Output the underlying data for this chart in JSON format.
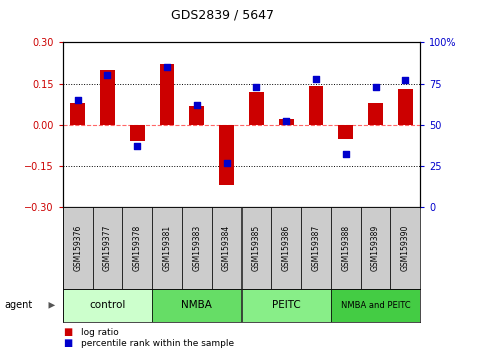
{
  "title": "GDS2839 / 5647",
  "samples": [
    "GSM159376",
    "GSM159377",
    "GSM159378",
    "GSM159381",
    "GSM159383",
    "GSM159384",
    "GSM159385",
    "GSM159386",
    "GSM159387",
    "GSM159388",
    "GSM159389",
    "GSM159390"
  ],
  "log_ratio": [
    0.08,
    0.2,
    -0.06,
    0.22,
    0.07,
    -0.22,
    0.12,
    0.02,
    0.14,
    -0.05,
    0.08,
    0.13
  ],
  "percentile_rank": [
    65,
    80,
    37,
    85,
    62,
    27,
    73,
    52,
    78,
    32,
    73,
    77
  ],
  "groups": [
    {
      "label": "control",
      "start": 0,
      "end": 3,
      "color": "#ccffcc"
    },
    {
      "label": "NMBA",
      "start": 3,
      "end": 6,
      "color": "#66dd66"
    },
    {
      "label": "PEITC",
      "start": 6,
      "end": 9,
      "color": "#88ee88"
    },
    {
      "label": "NMBA and PEITC",
      "start": 9,
      "end": 12,
      "color": "#44cc44"
    }
  ],
  "ylim_left": [
    -0.3,
    0.3
  ],
  "ylim_right": [
    0,
    100
  ],
  "yticks_left": [
    -0.3,
    -0.15,
    0,
    0.15,
    0.3
  ],
  "yticks_right": [
    0,
    25,
    50,
    75,
    100
  ],
  "bar_color": "#cc0000",
  "dot_color": "#0000cc",
  "zero_line_color": "#ff6666",
  "dotted_line_color": "#000000",
  "background_color": "#ffffff",
  "sample_box_color": "#cccccc",
  "legend_bar_label": "log ratio",
  "legend_dot_label": "percentile rank within the sample",
  "group_colors": [
    "#ccffcc",
    "#66dd66",
    "#88ee88",
    "#44cc44"
  ]
}
